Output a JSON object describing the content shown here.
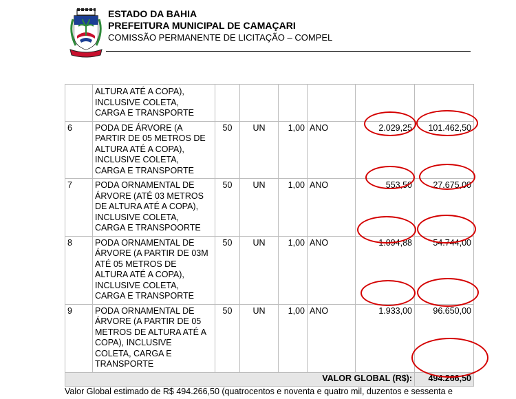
{
  "header": {
    "state": "ESTADO DA BAHIA",
    "city": "PREFEITURA MUNICIPAL DE CAMAÇARI",
    "commission": "COMISSÃO PERMANENTE DE LICITAÇÃO – COMPEL"
  },
  "colors": {
    "annotation": "#d40000",
    "total_row_bg": "#e6e6e6",
    "crest_red": "#c8102e",
    "crest_blue": "#1c3f94",
    "crest_green": "#2e8b3a"
  },
  "table": {
    "continued_lines": [
      "ALTURA ATÉ A COPA),",
      "INCLUSIVE COLETA,",
      "CARGA E TRANSPORTE"
    ],
    "rows": [
      {
        "num": "6",
        "desc": [
          "PODA DE ÁRVORE (A",
          "PARTIR DE 05 METROS DE",
          "ALTURA ATÉ A COPA),",
          "INCLUSIVE COLETA,",
          "CARGA E TRANSPORTE"
        ],
        "qty": "50",
        "unit": "UN",
        "factor": "1,00",
        "period": "ANO",
        "unit_price": "2.029,25",
        "total": "101.462,50"
      },
      {
        "num": "7",
        "desc": [
          "PODA ORNAMENTAL DE",
          "ÁRVORE (ATÉ 03 METROS",
          "DE ALTURA ATÉ A COPA),",
          "INCLUSIVE COLETA,",
          "CARGA E TRANSPOORTE"
        ],
        "qty": "50",
        "unit": "UN",
        "factor": "1,00",
        "period": "ANO",
        "unit_price": "553,50",
        "total": "27.675,00"
      },
      {
        "num": "8",
        "desc": [
          "PODA ORNAMENTAL DE",
          "ÁRVORE (A PARTIR DE 03M",
          "ATÉ 05 METROS DE",
          "ALTURA ATÉ A COPA),",
          "INCLUSIVE COLETA,",
          "CARGA E TRANSPORTE"
        ],
        "qty": "50",
        "unit": "UN",
        "factor": "1,00",
        "period": "ANO",
        "unit_price": "1.094,88",
        "total": "54.744,00"
      },
      {
        "num": "9",
        "desc": [
          "PODA ORNAMENTAL DE",
          "ÁRVORE (A PARTIR DE 05",
          "METROS DE ALTURA ATÉ A",
          "COPA), INCLUSIVE",
          "COLETA, CARGA E",
          "TRANSPORTE"
        ],
        "qty": "50",
        "unit": "UN",
        "factor": "1,00",
        "period": "ANO",
        "unit_price": "1.933,00",
        "total": "96.650,00"
      }
    ],
    "total_label": "VALOR GLOBAL (R$):",
    "total_value": "494.266,50"
  },
  "footer": {
    "text": "Valor Global estimado de R$ 494.266,50 (quatrocentos e noventa e quatro mil, duzentos e sessenta e"
  }
}
